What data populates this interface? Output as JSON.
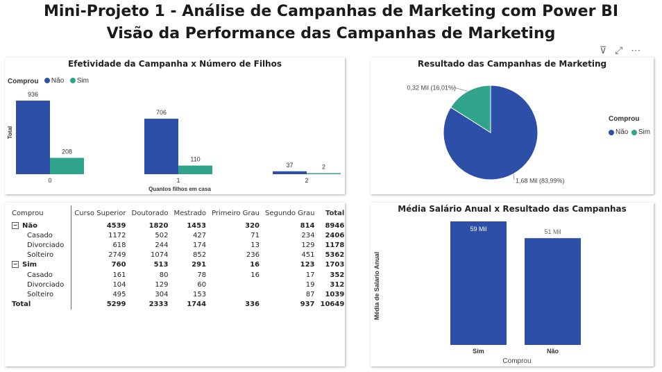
{
  "header": {
    "title": "Mini-Projeto 1 - Análise de Campanhas de Marketing com Power BI",
    "subtitle": "Visão da Performance das Campanhas de Marketing"
  },
  "colors": {
    "nao": "#2E4FA8",
    "sim": "#2FA38C"
  },
  "toolbar": {
    "filter_icon": "filter-icon",
    "focus_icon": "focus-mode-icon",
    "more_icon": "more-options-icon",
    "filter_glyph": "⊽",
    "focus_glyph": "⤢",
    "more_glyph": "⋯"
  },
  "children_chart": {
    "title": "Efetividade da Campanha x Número de Filhos",
    "legend_title": "Comprou",
    "ylabel": "Total",
    "xlabel": "Quantos filhos em casa",
    "chart_data": {
      "type": "bar",
      "categories": [
        "0",
        "1",
        "2"
      ],
      "series": [
        {
          "name": "Não",
          "values": [
            936,
            706,
            37
          ]
        },
        {
          "name": "Sim",
          "values": [
            208,
            110,
            2
          ]
        }
      ],
      "xlabel": "Quantos filhos em casa",
      "ylabel": "Total",
      "ylim": [
        0,
        936
      ]
    }
  },
  "pie_chart": {
    "title": "Resultado das Campanhas de Marketing",
    "legend_title": "Comprou",
    "legend": [
      "Não",
      "Sim"
    ],
    "labels": [
      "1,68 Mil (83,99%)",
      "0,32 Mil (16,01%)"
    ],
    "chart_data": {
      "type": "pie",
      "categories": [
        "Não",
        "Sim"
      ],
      "values": [
        83.99,
        16.01
      ]
    }
  },
  "matrix": {
    "headers": [
      "Comprou",
      "Curso Superior",
      "Doutorado",
      "Mestrado",
      "Primeiro Grau",
      "Segundo Grau",
      "Total"
    ],
    "expander_glyph": "−",
    "rows": [
      {
        "label": "Não",
        "level": 0,
        "values": [
          "4539",
          "1820",
          "1453",
          "320",
          "814",
          "8946"
        ]
      },
      {
        "label": "Casado",
        "level": 1,
        "values": [
          "1172",
          "502",
          "427",
          "71",
          "234",
          "2406"
        ]
      },
      {
        "label": "Divorciado",
        "level": 1,
        "values": [
          "618",
          "244",
          "174",
          "13",
          "129",
          "1178"
        ]
      },
      {
        "label": "Solteiro",
        "level": 1,
        "values": [
          "2749",
          "1074",
          "852",
          "236",
          "451",
          "5362"
        ]
      },
      {
        "label": "Sim",
        "level": 0,
        "values": [
          "760",
          "513",
          "291",
          "16",
          "123",
          "1703"
        ]
      },
      {
        "label": "Casado",
        "level": 1,
        "values": [
          "161",
          "80",
          "78",
          "16",
          "17",
          "352"
        ]
      },
      {
        "label": "Divorciado",
        "level": 1,
        "values": [
          "104",
          "129",
          "60",
          "",
          "19",
          "312"
        ]
      },
      {
        "label": "Solteiro",
        "level": 1,
        "values": [
          "495",
          "304",
          "153",
          "",
          "87",
          "1039"
        ]
      },
      {
        "label": "Total",
        "level": 2,
        "values": [
          "5299",
          "2333",
          "1744",
          "336",
          "937",
          "10649"
        ]
      }
    ]
  },
  "salary_chart": {
    "title": "Média Salário Anual x Resultado das Campanhas",
    "ylabel": "Média de Salario Anual",
    "xlabel": "Comprou",
    "value_labels": [
      "59 Mil",
      "51 Mil"
    ],
    "chart_data": {
      "type": "bar",
      "categories": [
        "Sim",
        "Não"
      ],
      "values": [
        59,
        51
      ],
      "xlabel": "Comprou",
      "ylabel": "Média de Salario Anual",
      "ylim": [
        0,
        59
      ]
    }
  }
}
